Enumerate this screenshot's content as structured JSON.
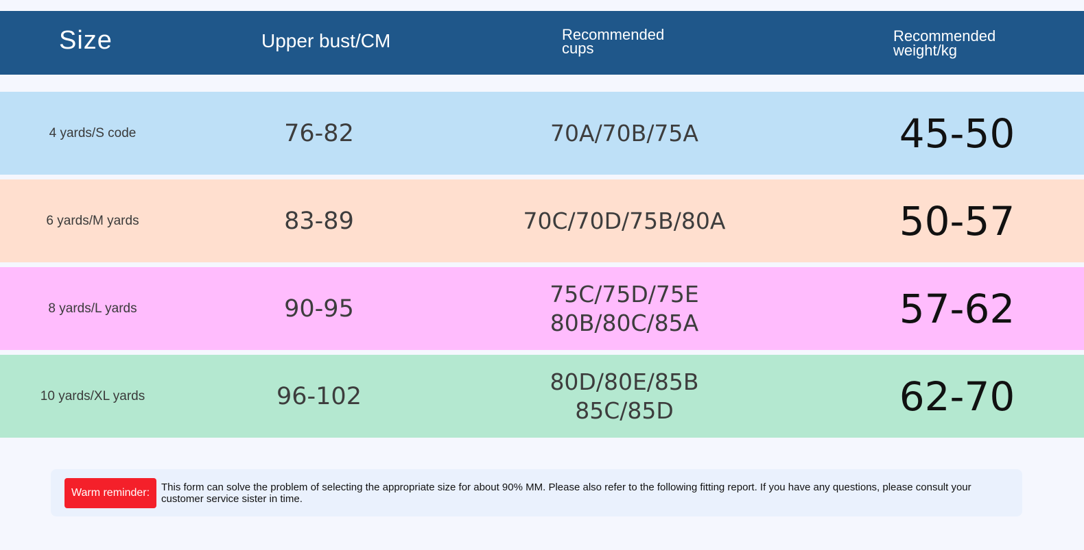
{
  "header": {
    "size": "Size",
    "bust": "Upper bust/CM",
    "cups": "Recommended cups",
    "weight": "Recommended weight/kg"
  },
  "rows": [
    {
      "size": "4 yards/S code",
      "bust": "76-82",
      "cups": [
        "70A/70B/75A"
      ],
      "weight": "45-50",
      "color": "#bee0f7"
    },
    {
      "size": "6 yards/M yards",
      "bust": "83-89",
      "cups": [
        "70C/70D/75B/80A"
      ],
      "weight": "50-57",
      "color": "#ffdfcf"
    },
    {
      "size": "8 yards/L yards",
      "bust": "90-95",
      "cups": [
        "75C/75D/75E",
        "80B/80C/85A"
      ],
      "weight": "57-62",
      "color": "#ffbcfd"
    },
    {
      "size": "10 yards/XL yards",
      "bust": "96-102",
      "cups": [
        "80D/80E/85B",
        "85C/85D"
      ],
      "weight": "62-70",
      "color": "#b4e8d0"
    }
  ],
  "reminder": {
    "badge": "Warm reminder:",
    "text": "This form can solve the problem of selecting the appropriate size for about 90% MM. Please also refer to the following fitting report. If you have any questions, please consult your customer service sister in time."
  },
  "colors": {
    "header_bg": "#1f578a",
    "page_bg": "#f5f7fe",
    "badge_bg": "#f4202a"
  }
}
